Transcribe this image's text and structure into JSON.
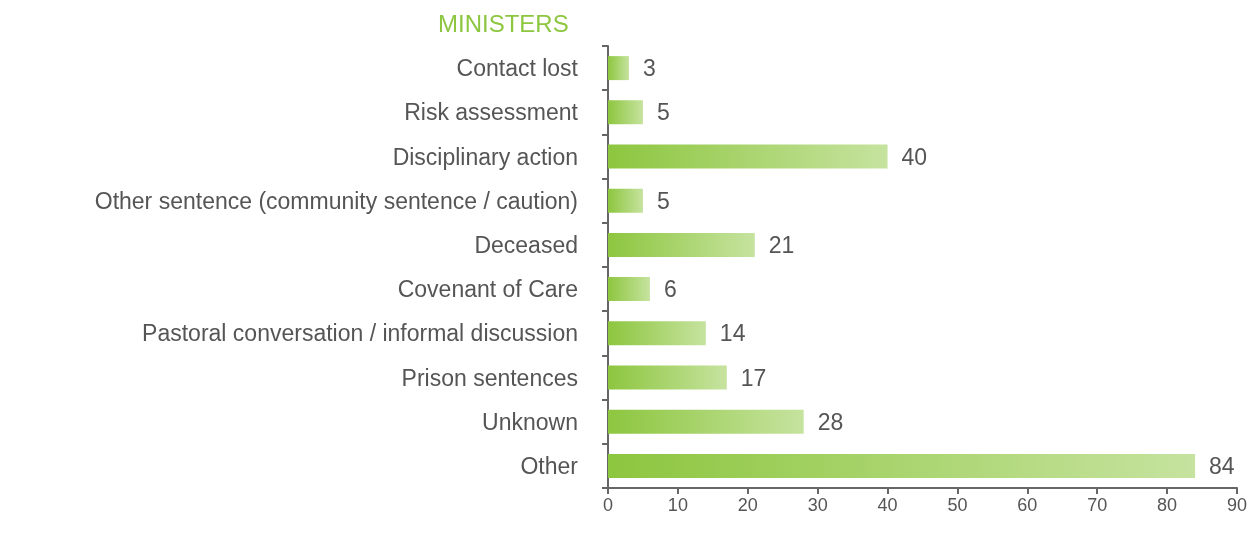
{
  "chart_data": {
    "type": "bar",
    "orientation": "horizontal",
    "title": "MINISTERS",
    "categories": [
      "Contact lost",
      "Risk assessment",
      "Disciplinary action",
      "Other sentence (community sentence / caution)",
      "Deceased",
      "Covenant of Care",
      "Pastoral conversation / informal discussion",
      "Prison sentences",
      "Unknown",
      "Other"
    ],
    "values": [
      3,
      5,
      40,
      5,
      21,
      6,
      14,
      17,
      28,
      84
    ],
    "color": "#8dc63f",
    "xlim": [
      0,
      90
    ],
    "xticks": [
      0,
      10,
      20,
      30,
      40,
      50,
      60,
      70,
      80,
      90
    ],
    "data_labels": true
  }
}
